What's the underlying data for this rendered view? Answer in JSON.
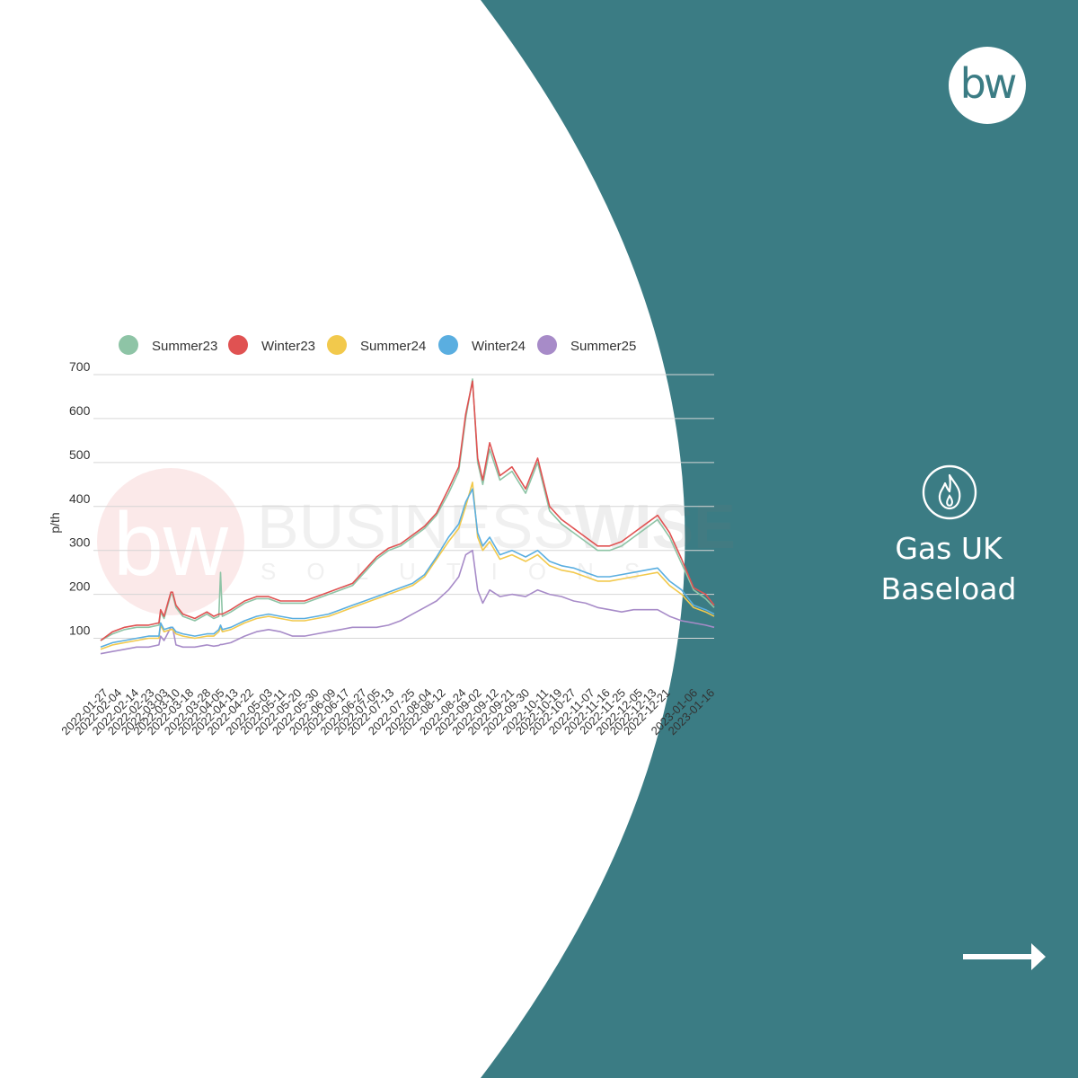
{
  "brand": {
    "logo_text": "bw",
    "watermark_business": "BUSINESS",
    "watermark_wise": "WISE",
    "watermark_solutions": "SOLUTIONS"
  },
  "side_panel": {
    "title_line1": "Gas UK",
    "title_line2": "Baseload",
    "flame_icon": "flame-icon",
    "arrow_icon": "arrow-right-icon",
    "background_color": "#3b7c84"
  },
  "chart_data": {
    "type": "line",
    "title": "",
    "xlabel": "",
    "ylabel": "p/th",
    "ylim": [
      50,
      700
    ],
    "yticks": [
      100,
      200,
      300,
      400,
      500,
      600,
      700
    ],
    "grid": true,
    "legend_position": "top",
    "x_tick_labels": [
      "2022-01-27",
      "2022-02-04",
      "2022-02-14",
      "2022-02-23",
      "2022-03-03",
      "2022-03-10",
      "2022-03-18",
      "2022-03-28",
      "2022-04-05",
      "2022-04-13",
      "2022-04-22",
      "2022-05-03",
      "2022-05-11",
      "2022-05-20",
      "2022-05-30",
      "2022-06-09",
      "2022-06-17",
      "2022-06-27",
      "2022-07-05",
      "2022-07-13",
      "2022-07-25",
      "2022-08-04",
      "2022-08-12",
      "2022-08-24",
      "2022-09-02",
      "2022-09-12",
      "2022-09-21",
      "2022-09-30",
      "2022-10-11",
      "2022-10-19",
      "2022-10-27",
      "2022-11-07",
      "2022-11-16",
      "2022-11-25",
      "2022-12-05",
      "2022-12-13",
      "2022-12-21",
      "2023-01-06",
      "2023-01-16"
    ],
    "x": [
      "2022-01-25",
      "2022-02-01",
      "2022-02-08",
      "2022-02-15",
      "2022-02-22",
      "2022-02-28",
      "2022-03-01",
      "2022-03-03",
      "2022-03-07",
      "2022-03-08",
      "2022-03-10",
      "2022-03-14",
      "2022-03-21",
      "2022-03-28",
      "2022-04-01",
      "2022-04-04",
      "2022-04-05",
      "2022-04-06",
      "2022-04-11",
      "2022-04-19",
      "2022-04-26",
      "2022-05-03",
      "2022-05-10",
      "2022-05-17",
      "2022-05-24",
      "2022-05-31",
      "2022-06-07",
      "2022-06-14",
      "2022-06-21",
      "2022-06-28",
      "2022-07-05",
      "2022-07-12",
      "2022-07-19",
      "2022-07-26",
      "2022-08-02",
      "2022-08-09",
      "2022-08-16",
      "2022-08-22",
      "2022-08-26",
      "2022-08-30",
      "2022-09-02",
      "2022-09-05",
      "2022-09-09",
      "2022-09-15",
      "2022-09-22",
      "2022-09-30",
      "2022-10-07",
      "2022-10-14",
      "2022-10-21",
      "2022-10-28",
      "2022-11-04",
      "2022-11-11",
      "2022-11-18",
      "2022-11-25",
      "2022-12-02",
      "2022-12-09",
      "2022-12-16",
      "2022-12-23",
      "2022-12-30",
      "2023-01-06",
      "2023-01-13",
      "2023-01-18"
    ],
    "series": [
      {
        "name": "Summer23",
        "color": "#8ec4a6",
        "values": [
          95,
          110,
          120,
          125,
          125,
          130,
          160,
          145,
          200,
          200,
          170,
          150,
          140,
          155,
          145,
          150,
          250,
          150,
          160,
          180,
          190,
          190,
          180,
          180,
          180,
          190,
          200,
          210,
          220,
          250,
          280,
          300,
          310,
          330,
          350,
          380,
          430,
          480,
          600,
          690,
          500,
          450,
          530,
          460,
          480,
          430,
          500,
          390,
          360,
          340,
          320,
          300,
          300,
          310,
          330,
          350,
          370,
          330,
          270,
          210,
          190,
          170
        ]
      },
      {
        "name": "Winter23",
        "color": "#e05252",
        "values": [
          95,
          115,
          125,
          130,
          130,
          135,
          165,
          150,
          205,
          205,
          175,
          155,
          145,
          160,
          150,
          155,
          155,
          155,
          165,
          185,
          195,
          195,
          185,
          185,
          185,
          195,
          205,
          215,
          225,
          255,
          285,
          305,
          315,
          335,
          355,
          385,
          440,
          490,
          610,
          685,
          510,
          460,
          545,
          470,
          490,
          440,
          510,
          400,
          370,
          350,
          330,
          310,
          310,
          320,
          340,
          360,
          380,
          340,
          280,
          215,
          200,
          175
        ]
      },
      {
        "name": "Summer24",
        "color": "#f2c94c",
        "values": [
          75,
          85,
          90,
          95,
          100,
          100,
          130,
          115,
          120,
          120,
          110,
          105,
          100,
          105,
          105,
          115,
          125,
          115,
          120,
          135,
          145,
          150,
          145,
          140,
          140,
          145,
          150,
          160,
          170,
          180,
          190,
          200,
          210,
          220,
          240,
          280,
          320,
          350,
          400,
          455,
          330,
          300,
          320,
          280,
          290,
          275,
          290,
          265,
          255,
          250,
          240,
          230,
          230,
          235,
          240,
          245,
          250,
          220,
          200,
          170,
          160,
          150
        ]
      },
      {
        "name": "Winter24",
        "color": "#5aaee0",
        "values": [
          80,
          90,
          95,
          100,
          105,
          105,
          135,
          120,
          125,
          125,
          115,
          110,
          105,
          110,
          110,
          120,
          130,
          120,
          125,
          140,
          150,
          155,
          150,
          145,
          145,
          150,
          155,
          165,
          175,
          185,
          195,
          205,
          215,
          225,
          245,
          285,
          330,
          360,
          410,
          440,
          340,
          310,
          330,
          290,
          300,
          285,
          300,
          275,
          265,
          260,
          250,
          240,
          240,
          245,
          250,
          255,
          260,
          230,
          210,
          175,
          165,
          155
        ]
      },
      {
        "name": "Summer25",
        "color": "#a78bc8",
        "values": [
          65,
          70,
          75,
          80,
          80,
          85,
          105,
          95,
          125,
          125,
          85,
          80,
          80,
          85,
          82,
          84,
          86,
          86,
          90,
          105,
          115,
          120,
          115,
          105,
          105,
          110,
          115,
          120,
          125,
          125,
          125,
          130,
          140,
          155,
          170,
          185,
          210,
          240,
          290,
          300,
          210,
          180,
          210,
          195,
          200,
          195,
          210,
          200,
          195,
          185,
          180,
          170,
          165,
          160,
          165,
          165,
          165,
          150,
          140,
          135,
          130,
          125
        ]
      }
    ]
  }
}
